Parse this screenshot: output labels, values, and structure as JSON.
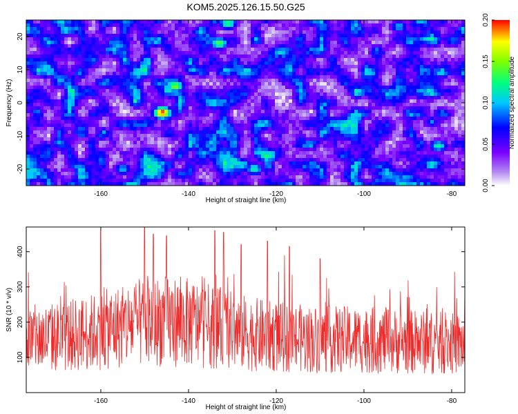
{
  "title": "KOM5.2025.126.15.50.G25",
  "colors": {
    "signal": "#ee2b2b",
    "plot_bg": "#ffffff"
  },
  "chart_data": [
    {
      "type": "heatmap",
      "title": "KOM5.2025.126.15.50.G25",
      "xlabel": "Height of straight line (km)",
      "ylabel": "Frequency (Hz)",
      "xlim": [
        -177,
        -77
      ],
      "ylim": [
        -25,
        25
      ],
      "x_ticks": [
        -160,
        -140,
        -120,
        -100,
        -80
      ],
      "y_ticks": [
        -20,
        -10,
        0,
        10,
        20
      ],
      "colorbar": {
        "label": "Normalized spectral amplitude",
        "range": [
          0.0,
          0.2
        ],
        "ticks": [
          "0.00",
          "0.05",
          "0.10",
          "0.15",
          "0.20"
        ],
        "colors": [
          "#ffffff",
          "#8a2be2",
          "#0000ff",
          "#00ffff",
          "#00ff00",
          "#ffff00",
          "#ff0000"
        ]
      },
      "hotspots": [
        {
          "x": -146,
          "y": -3,
          "value": 0.2
        },
        {
          "x": -143,
          "y": 5,
          "value": 0.15
        },
        {
          "x": -133,
          "y": 18,
          "value": 0.14
        },
        {
          "x": -131,
          "y": 24,
          "value": 0.13
        },
        {
          "x": -168,
          "y": 22,
          "value": 0.11
        },
        {
          "x": -155,
          "y": -20,
          "value": 0.1
        },
        {
          "x": -125,
          "y": -20,
          "value": 0.12
        },
        {
          "x": -83,
          "y": -13,
          "value": 0.12
        },
        {
          "x": -92,
          "y": 23,
          "value": 0.1
        },
        {
          "x": -139,
          "y": 10,
          "value": 0.1
        }
      ],
      "grid": false
    },
    {
      "type": "line",
      "xlabel": "Height of straight line (km)",
      "ylabel": "SNR (10 * v/v)",
      "xlim": [
        -177,
        -77
      ],
      "ylim": [
        0,
        470
      ],
      "x_ticks": [
        -160,
        -140,
        -120,
        -100,
        -80
      ],
      "y_ticks": [
        100,
        200,
        300,
        400
      ],
      "description_stats": {
        "samples": 1200,
        "mean": 150,
        "spread": 60
      },
      "peaks": [
        {
          "x": -160,
          "y": 460
        },
        {
          "x": -150,
          "y": 470
        },
        {
          "x": -148,
          "y": 450
        },
        {
          "x": -145,
          "y": 445
        },
        {
          "x": -134,
          "y": 460
        },
        {
          "x": -132,
          "y": 455
        },
        {
          "x": -128,
          "y": 420
        },
        {
          "x": -122,
          "y": 430
        },
        {
          "x": -117,
          "y": 415
        },
        {
          "x": -110,
          "y": 380
        }
      ],
      "grid": false
    }
  ]
}
